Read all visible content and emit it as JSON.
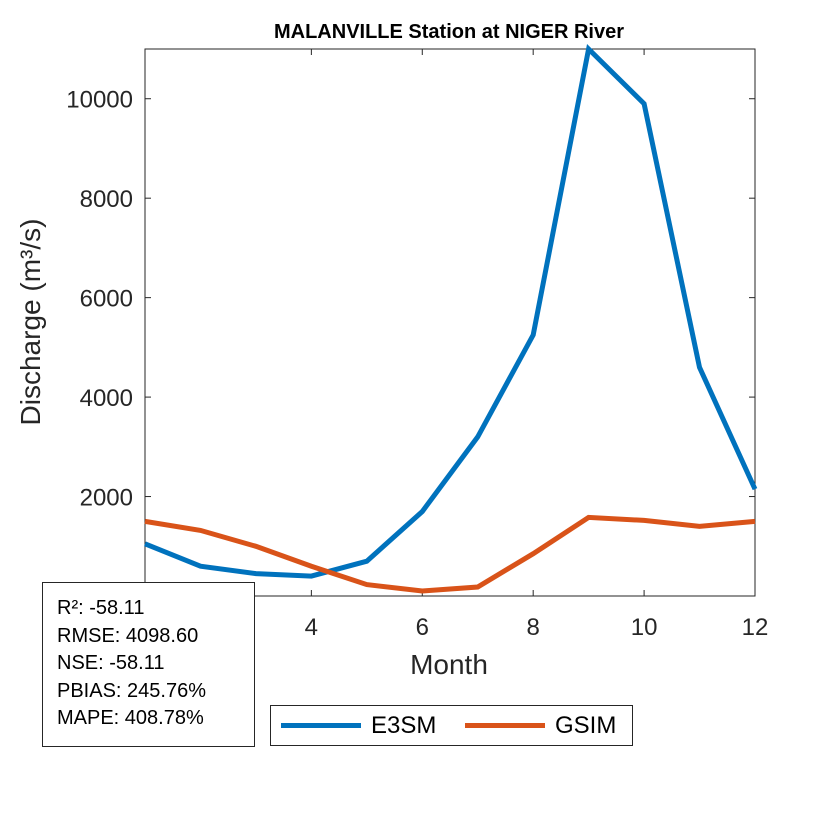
{
  "chart_data": {
    "type": "line",
    "title": "MALANVILLE  Station at  NIGER  River",
    "xlabel": "Month",
    "ylabel": "Discharge (m³/s)",
    "x": [
      1,
      2,
      3,
      4,
      5,
      6,
      7,
      8,
      9,
      10,
      11,
      12
    ],
    "xlim": [
      1,
      12
    ],
    "ylim": [
      0,
      11000
    ],
    "xticks": [
      4,
      6,
      8,
      10,
      12
    ],
    "yticks": [
      2000,
      4000,
      6000,
      8000,
      10000
    ],
    "grid": false,
    "legend_position": "below",
    "series": [
      {
        "name": "E3SM",
        "color": "#0072BD",
        "values": [
          1050,
          600,
          450,
          400,
          700,
          1700,
          3200,
          5250,
          11000,
          9900,
          4600,
          2150
        ]
      },
      {
        "name": "GSIM",
        "color": "#D95319",
        "values": [
          1500,
          1320,
          1000,
          600,
          230,
          100,
          180,
          850,
          1580,
          1520,
          1400,
          1500
        ]
      }
    ]
  },
  "stats": {
    "r2": "R²: -58.11",
    "rmse": "RMSE: 4098.60",
    "nse": "NSE: -58.11",
    "pbias": "PBIAS: 245.76%",
    "mape": "MAPE: 408.78%"
  }
}
